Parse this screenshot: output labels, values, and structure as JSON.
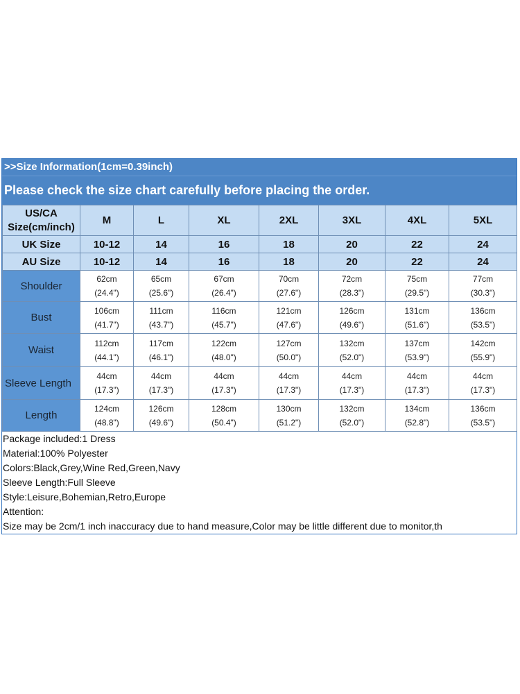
{
  "header": {
    "line1": ">>Size Information(1cm=0.39inch)",
    "line2": "Please check the size chart carefully before placing the order."
  },
  "table": {
    "corner_label_line1": "US/CA",
    "corner_label_line2": "Size(cm/inch)",
    "sizes": [
      "M",
      "L",
      "XL",
      "2XL",
      "3XL",
      "4XL",
      "5XL"
    ],
    "uk_label": "UK Size",
    "uk": [
      "10-12",
      "14",
      "16",
      "18",
      "20",
      "22",
      "24"
    ],
    "au_label": "AU Size",
    "au": [
      "10-12",
      "14",
      "16",
      "18",
      "20",
      "22",
      "24"
    ],
    "measures": [
      {
        "label": "Shoulder",
        "cm": [
          "62cm",
          "65cm",
          "67cm",
          "70cm",
          "72cm",
          "75cm",
          "77cm"
        ],
        "inch": [
          "(24.4\")",
          "(25.6\")",
          "(26.4\")",
          "(27.6\")",
          "(28.3\")",
          "(29.5\")",
          "(30.3\")"
        ]
      },
      {
        "label": "Bust",
        "cm": [
          "106cm",
          "111cm",
          "116cm",
          "121cm",
          "126cm",
          "131cm",
          "136cm"
        ],
        "inch": [
          "(41.7\")",
          "(43.7\")",
          "(45.7\")",
          "(47.6\")",
          "(49.6\")",
          "(51.6\")",
          "(53.5\")"
        ]
      },
      {
        "label": "Waist",
        "cm": [
          "112cm",
          "117cm",
          "122cm",
          "127cm",
          "132cm",
          "137cm",
          "142cm"
        ],
        "inch": [
          "(44.1\")",
          "(46.1\")",
          "(48.0\")",
          "(50.0\")",
          "(52.0\")",
          "(53.9\")",
          "(55.9\")"
        ]
      },
      {
        "label": "Sleeve Length",
        "cm": [
          "44cm",
          "44cm",
          "44cm",
          "44cm",
          "44cm",
          "44cm",
          "44cm"
        ],
        "inch": [
          "(17.3\")",
          "(17.3\")",
          "(17.3\")",
          "(17.3\")",
          "(17.3\")",
          "(17.3\")",
          "(17.3\")"
        ]
      },
      {
        "label": "Length",
        "cm": [
          "124cm",
          "126cm",
          "128cm",
          "130cm",
          "132cm",
          "134cm",
          "136cm"
        ],
        "inch": [
          "(48.8\")",
          "(49.6\")",
          "(50.4\")",
          "(51.2\")",
          "(52.0\")",
          "(52.8\")",
          "(53.5\")"
        ]
      }
    ]
  },
  "notes": [
    "Package included:1 Dress",
    "Material:100% Polyester",
    "Colors:Black,Grey,Wine Red,Green,Navy",
    "Sleeve Length:Full Sleeve",
    "Style:Leisure,Bohemian,Retro,Europe",
    "Attention:",
    "Size may be 2cm/1 inch inaccuracy due to hand measure,Color may be little different due to monitor,th"
  ]
}
